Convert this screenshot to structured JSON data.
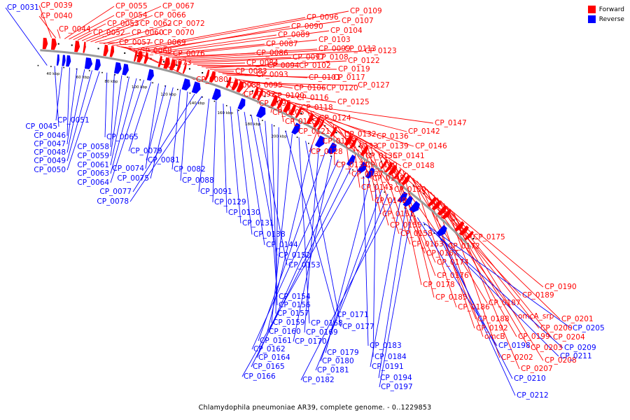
{
  "caption": "Chlamydophila pneumoniae AR39, complete genome. - 0..1229853",
  "legend": [
    {
      "label": "Forward",
      "color": "#ff0000"
    },
    {
      "label": "Reverse",
      "color": "#0000ff"
    }
  ],
  "colors": {
    "forward": "#ff0000",
    "reverse": "#0000ff",
    "backbone": "#9a9a9a"
  },
  "kbp_ticks": [
    "40 kbp",
    "60 kbp",
    "80 kbp",
    "100 kbp",
    "120 kbp",
    "140 kbp",
    "160 kbp",
    "180 kbp",
    "200 kbp"
  ],
  "forward_labels": [
    "CP_0039",
    "CP_0040",
    "CP_0044",
    "CP_0055",
    "CP_0054",
    "CP_0053",
    "CP_0052",
    "CP_0067",
    "CP_0066",
    "CP_0062",
    "CP_0060",
    "CP_0057",
    "CP_0072",
    "CP_0070",
    "CP_0069",
    "CP_0068",
    "CP_0076",
    "CP_0073",
    "CP_0080",
    "CP_0096",
    "CP_0109",
    "CP_0107",
    "CP_0090",
    "CP_0089",
    "CP_0104",
    "CP_0087",
    "CP_0103",
    "CP_0086",
    "CP_0099",
    "CP_0113",
    "CP_0123",
    "CP_0097",
    "CP_0108",
    "CP_0084",
    "CP_0094",
    "CP_0102",
    "CP_0122",
    "CP_0119",
    "CP_0083",
    "CP_0093",
    "CP_0101",
    "CP_0117",
    "CP_0085",
    "CP_0095",
    "CP_0106",
    "CP_0120",
    "CP_0127",
    "CP_0092",
    "CP_0100",
    "CP_0116",
    "CP_0098",
    "CP_0118",
    "CP_0125",
    "CP_0105",
    "CP_0115",
    "CP_0124",
    "CP_0121",
    "CP_0142",
    "CP_0147",
    "CP_0132",
    "CP_0136",
    "CP_0126",
    "CP_0133",
    "CP_0139",
    "CP_0146",
    "CP_0128",
    "CP_0135",
    "CP_0141",
    "CP_0134",
    "CP_0140",
    "CP_0148",
    "CP_0137",
    "CP_0145",
    "CP_0143",
    "CP_0150",
    "CP_0149",
    "CP_0151",
    "CP_0155",
    "CP_0158",
    "CP_0175",
    "CP_0163",
    "CP_0172",
    "CP_0167",
    "CP_0174",
    "CP_0176",
    "CP_0178",
    "CP_0190",
    "CP_0185",
    "CP_0189",
    "CP_0187",
    "CP_0186",
    "omcA_srp",
    "CP_0188",
    "CP_0201",
    "CP_0192",
    "CP_0200",
    "omcB",
    "CP_0199",
    "CP_0204",
    "CP_0203",
    "CP_0202",
    "CP_0208",
    "CP_0207"
  ],
  "reverse_labels": [
    "CP_0031",
    "CP_0045",
    "CP_0051",
    "CP_0046",
    "CP_0047",
    "CP_0048",
    "CP_0049",
    "CP_0050",
    "CP_0065",
    "CP_0058",
    "CP_0059",
    "CP_0061",
    "CP_0063",
    "CP_0064",
    "CP_0079",
    "CP_0074",
    "CP_0081",
    "CP_0075",
    "CP_0082",
    "CP_0088",
    "CP_0077",
    "CP_0078",
    "CP_0091",
    "CP_0129",
    "CP_0130",
    "CP_0131",
    "CP_0138",
    "CP_0144",
    "CP_0152",
    "CP_0153",
    "CP_0154",
    "CP_0156",
    "CP_0157",
    "CP_0171",
    "CP_0159",
    "CP_0168",
    "CP_0177",
    "CP_0160",
    "CP_0169",
    "CP_0161",
    "CP_0170",
    "CP_0162",
    "CP_0164",
    "CP_0165",
    "CP_0166",
    "CP_0183",
    "CP_0179",
    "CP_0184",
    "CP_0180",
    "CP_0181",
    "CP_0182",
    "CP_0191",
    "CP_0194",
    "CP_0197",
    "CP_0198",
    "CP_0205",
    "CP_0209",
    "CP_0211",
    "CP_0210",
    "CP_0212"
  ]
}
